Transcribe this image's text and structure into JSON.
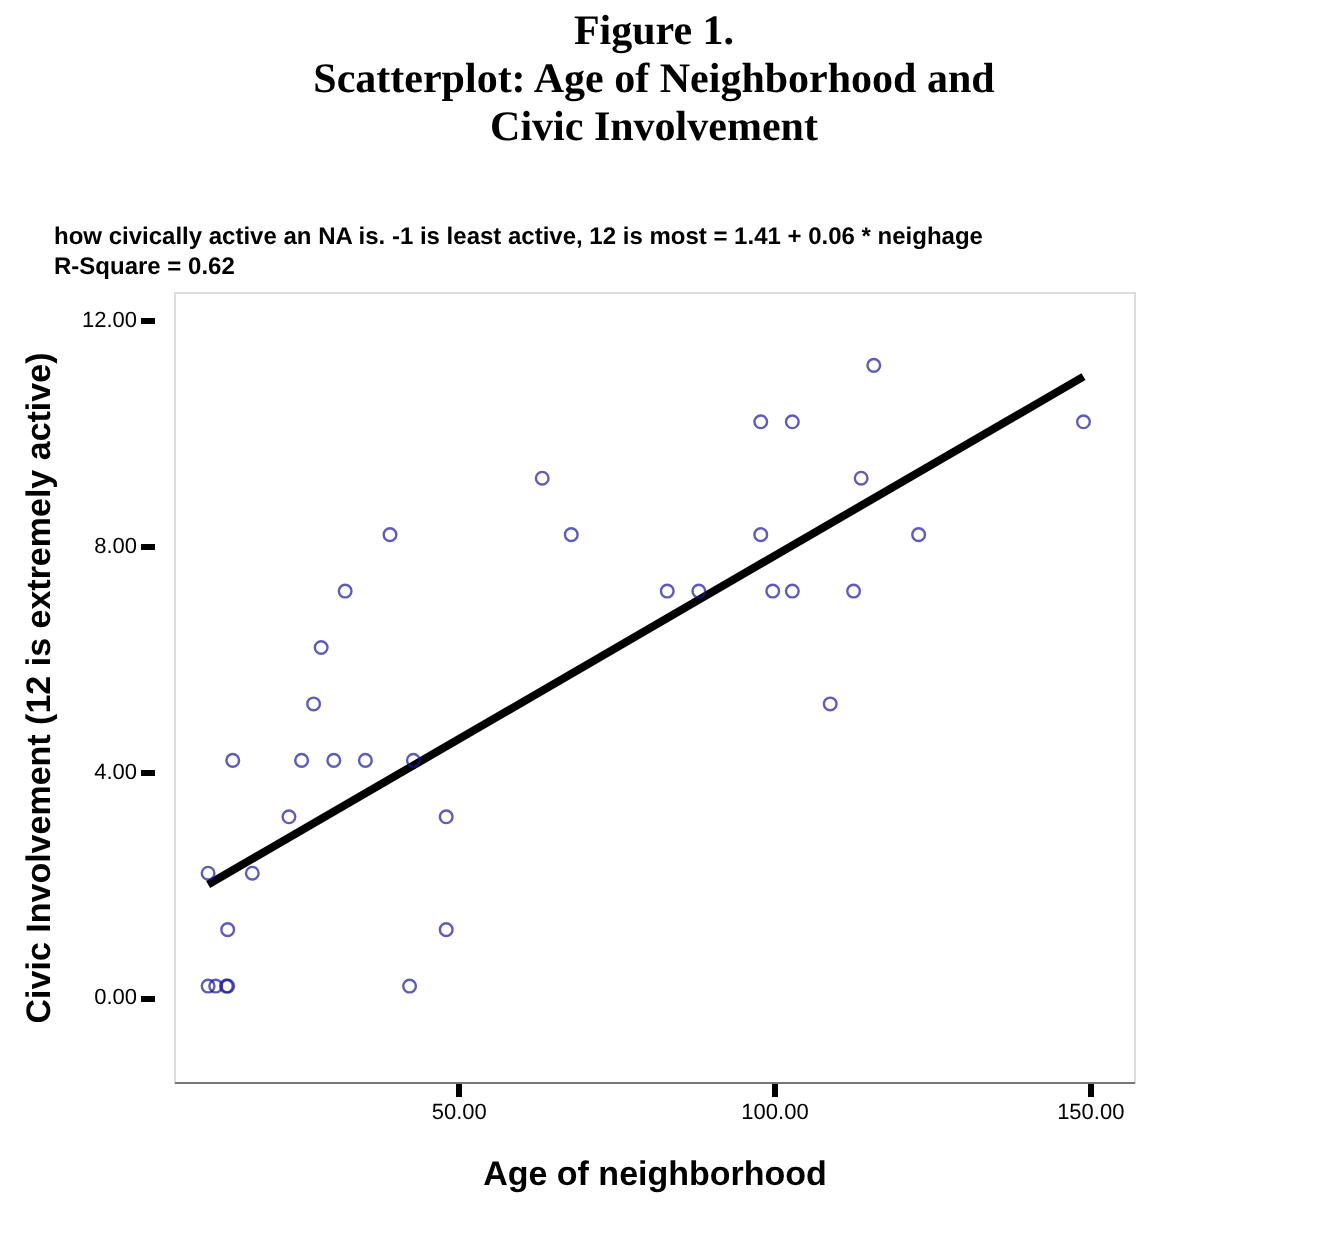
{
  "chart_data": {
    "type": "scatter",
    "title": "Figure 1.\nScatterplot: Age of Neighborhood and\nCivic Involvement",
    "annotations": [
      "how civically active an NA is. -1 is least active, 12 is most = 1.41 + 0.06 * neighage",
      "R-Square = 0.62"
    ],
    "xlabel": "Age of neighborhood",
    "ylabel": "Civic Involvement (12 is extremely active)",
    "xlim": [
      5,
      157
    ],
    "ylim": [
      -1.5,
      12.5
    ],
    "xticks": [
      {
        "value": 50,
        "label": "50.00"
      },
      {
        "value": 100,
        "label": "100.00"
      },
      {
        "value": 150,
        "label": "150.00"
      }
    ],
    "yticks": [
      {
        "value": 0,
        "label": "0.00"
      },
      {
        "value": 4,
        "label": "4.00"
      },
      {
        "value": 8,
        "label": "8.00"
      },
      {
        "value": 12,
        "label": "12.00"
      }
    ],
    "grid": false,
    "series": [
      {
        "type": "line",
        "marker": "none",
        "color": "#000000",
        "line_style": "solid",
        "x": [
          10.4,
          149
        ],
        "values": [
          2.0,
          11.0
        ]
      },
      {
        "marker": "circle",
        "color": "#1a1a99",
        "x": [
          10.4,
          11.6,
          13.3,
          13.5,
          13.5,
          10.4,
          14.3,
          17.4,
          23.2,
          25.2,
          27.1,
          28.3,
          30.3,
          32.1,
          35.3,
          39.2,
          42.3,
          42.9,
          48.1,
          48.1,
          63.3,
          67.9,
          83.1,
          88.1,
          97.9,
          97.9,
          99.8,
          102.9,
          102.9,
          108.9,
          112.6,
          113.8,
          115.8,
          122.9,
          149
        ],
        "values": [
          0.2,
          0.2,
          0.2,
          0.2,
          1.2,
          2.2,
          4.2,
          2.2,
          3.2,
          4.2,
          5.2,
          6.2,
          4.2,
          7.2,
          4.2,
          8.2,
          0.2,
          4.2,
          3.2,
          1.2,
          9.2,
          8.2,
          7.2,
          7.2,
          10.2,
          8.2,
          7.2,
          10.2,
          7.2,
          5.2,
          7.2,
          9.2,
          11.2,
          8.2,
          10.2
        ]
      }
    ]
  }
}
